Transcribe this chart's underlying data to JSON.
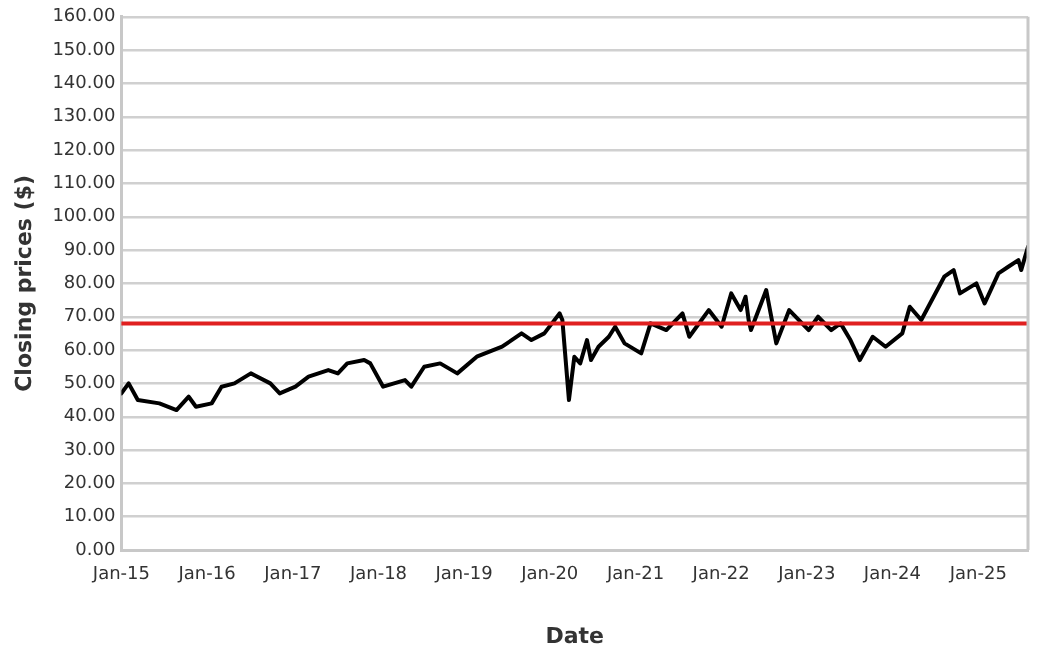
{
  "chart_data": {
    "type": "line",
    "xlabel": "Date",
    "ylabel": "Closing prices ($)",
    "xlim": [
      "2015-01-01",
      "2025-08-01"
    ],
    "xticks": [
      {
        "value": "2015-01",
        "label": "Jan-15"
      },
      {
        "value": "2016-01",
        "label": "Jan-16"
      },
      {
        "value": "2017-01",
        "label": "Jan-17"
      },
      {
        "value": "2018-01",
        "label": "Jan-18"
      },
      {
        "value": "2019-01",
        "label": "Jan-19"
      },
      {
        "value": "2020-01",
        "label": "Jan-20"
      },
      {
        "value": "2021-01",
        "label": "Jan-21"
      },
      {
        "value": "2022-01",
        "label": "Jan-22"
      },
      {
        "value": "2023-01",
        "label": "Jan-23"
      },
      {
        "value": "2024-01",
        "label": "Jan-24"
      },
      {
        "value": "2025-01",
        "label": "Jan-25"
      }
    ],
    "ylim": [
      0,
      160
    ],
    "yticks": [
      {
        "value": 0,
        "label": "0.00"
      },
      {
        "value": 10,
        "label": "10.00"
      },
      {
        "value": 20,
        "label": "20.00"
      },
      {
        "value": 30,
        "label": "30.00"
      },
      {
        "value": 40,
        "label": "40.00"
      },
      {
        "value": 50,
        "label": "50.00"
      },
      {
        "value": 60,
        "label": "60.00"
      },
      {
        "value": 70,
        "label": "70.00"
      },
      {
        "value": 80,
        "label": "80.00"
      },
      {
        "value": 90,
        "label": "90.00"
      },
      {
        "value": 100,
        "label": "100.00"
      },
      {
        "value": 110,
        "label": "110.00"
      },
      {
        "value": 120,
        "label": "120.00"
      },
      {
        "value": 130,
        "label": "130.00"
      },
      {
        "value": 140,
        "label": "140.00"
      },
      {
        "value": 150,
        "label": "150.00"
      },
      {
        "value": 160,
        "label": "160.00"
      }
    ],
    "grid": "y",
    "legend": false,
    "marker": "none",
    "line_style": "solid",
    "ref_lines": [
      {
        "axis": "y",
        "value": 68,
        "color": "#e02020"
      }
    ],
    "series": [
      {
        "color": "#000000",
        "x": [
          "2015-01-01",
          "2015-02-01",
          "2015-03-12",
          "2015-06-12",
          "2015-08-24",
          "2015-10-15",
          "2015-11-15",
          "2016-01-21",
          "2016-03-03",
          "2016-04-27",
          "2016-07-06",
          "2016-09-27",
          "2016-11-06",
          "2017-01-12",
          "2017-03-09",
          "2017-06-01",
          "2017-07-12",
          "2017-08-21",
          "2017-11-01",
          "2017-11-27",
          "2018-01-21",
          "2018-04-24",
          "2018-05-21",
          "2018-07-15",
          "2018-09-21",
          "2018-12-03",
          "2019-02-24",
          "2019-06-12",
          "2019-09-03",
          "2019-10-15",
          "2019-12-09",
          "2020-02-12",
          "2020-02-24",
          "2020-03-23",
          "2020-04-15",
          "2020-05-10",
          "2020-06-08",
          "2020-06-25",
          "2020-07-27",
          "2020-09-09",
          "2020-10-06",
          "2020-11-15",
          "2021-01-25",
          "2021-03-06",
          "2021-05-12",
          "2021-07-20",
          "2021-08-18",
          "2021-11-09",
          "2022-01-03",
          "2022-02-13",
          "2022-03-25",
          "2022-04-15",
          "2022-04-28",
          "2022-05-08",
          "2022-07-12",
          "2022-08-24",
          "2022-10-18",
          "2023-01-09",
          "2023-02-18",
          "2023-04-15",
          "2023-05-25",
          "2023-07-06",
          "2023-08-15",
          "2023-10-09",
          "2023-12-03",
          "2024-02-12",
          "2024-03-15",
          "2024-05-03",
          "2024-08-09",
          "2024-09-18",
          "2024-10-15",
          "2024-12-24",
          "2025-01-28",
          "2025-03-28",
          "2025-05-09",
          "2025-06-21",
          "2025-07-03",
          "2025-08-01"
        ],
        "values": [
          47,
          50,
          45,
          44,
          42,
          46,
          43,
          44,
          49,
          50,
          53,
          50,
          47,
          49,
          52,
          54,
          53,
          56,
          57,
          56,
          49,
          51,
          49,
          55,
          56,
          53,
          58,
          61,
          65,
          63,
          65,
          71,
          69,
          45,
          58,
          56,
          63,
          57,
          61,
          64,
          67,
          62,
          59,
          68,
          66,
          71,
          64,
          72,
          67,
          77,
          72,
          76,
          69,
          66,
          78,
          62,
          72,
          66,
          70,
          66,
          68,
          63,
          57,
          64,
          61,
          65,
          73,
          69,
          82,
          84,
          77,
          80,
          74,
          83,
          85,
          87,
          84,
          91
        ]
      }
    ]
  }
}
